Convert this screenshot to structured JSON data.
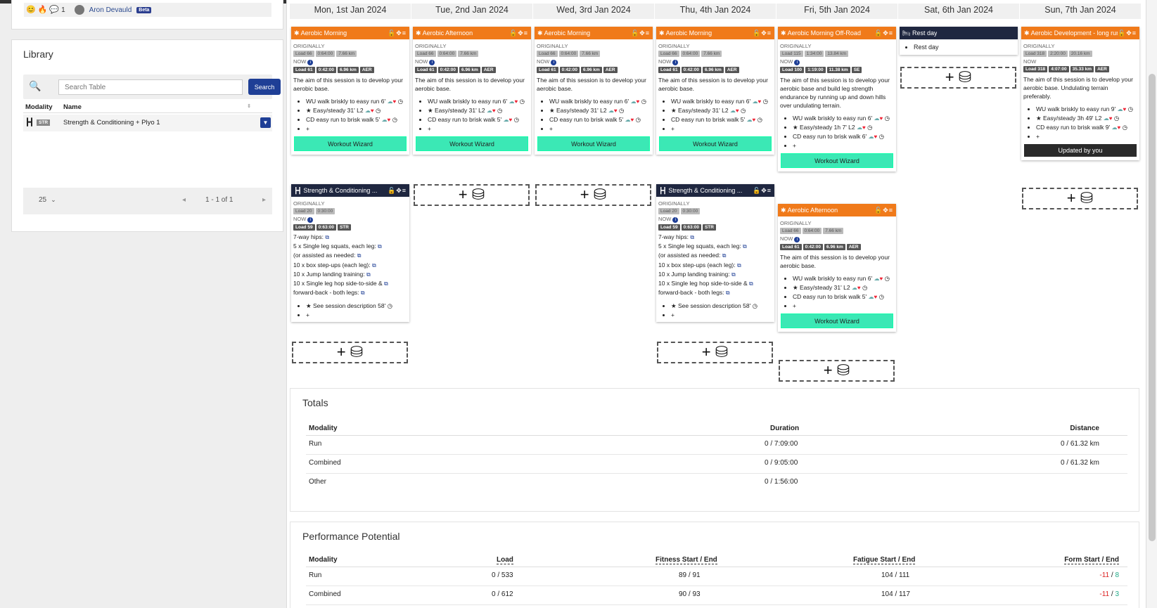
{
  "header": {
    "user_name": "Aron Devauld",
    "beta": "Beta",
    "count": "1"
  },
  "library": {
    "title": "Library",
    "search_placeholder": "Search Table",
    "search_button": "Search",
    "col_modality": "Modality",
    "col_name": "Name",
    "row": {
      "modality": "STR",
      "name": "Strength & Conditioning + Plyo 1"
    },
    "per_page": "25",
    "pagination": "1 - 1 of 1"
  },
  "days": [
    "Mon, 1st Jan 2024",
    "Tue, 2nd Jan 2024",
    "Wed, 3rd Jan 2024",
    "Thu, 4th Jan 2024",
    "Fri, 5th Jan 2024",
    "Sat, 6th Jan 2024",
    "Sun, 7th Jan 2024"
  ],
  "labels": {
    "originally": "ORIGINALLY",
    "now": "NOW",
    "workout_wizard": "Workout Wizard",
    "updated_by_you": "Updated by you"
  },
  "aerobic": {
    "title_morning": "Aerobic Morning",
    "title_afternoon": "Aerobic Afternoon",
    "orig": [
      "Load 66",
      "0:64:00",
      "7.66 km"
    ],
    "now": [
      "Load 61",
      "0:42:00",
      "6.96 km",
      "AER"
    ],
    "desc": "The aim of this session is to develop your aerobic base.",
    "steps": [
      "WU walk briskly to easy run 6'",
      "Easy/steady 31' L2",
      "CD easy run to brisk walk 5'"
    ]
  },
  "offroad": {
    "title": "Aerobic Morning Off-Road",
    "orig": [
      "Load 115",
      "1:34:00",
      "13.84 km"
    ],
    "now": [
      "Load 100",
      "1:19:00",
      "11.38 km",
      "SE"
    ],
    "desc": "The aim of this session is to develop your aerobic base and build leg strength endurance by running up and down hills over undulating terrain.",
    "steps": [
      "WU walk briskly to easy run 6'",
      "Easy/steady 1h 7' L2",
      "CD easy run to brisk walk 6'"
    ]
  },
  "longrun": {
    "title": "Aerobic Development - long run",
    "orig": [
      "Load 318",
      "2:20:00",
      "20.16 km"
    ],
    "now": [
      "Load 318",
      "4:07:00",
      "35.33 km",
      "AER"
    ],
    "desc": "The aim of this session is to develop your aerobic base. Undulating terrain preferably.",
    "steps": [
      "WU walk briskly to easy run 9'",
      "Easy/steady 3h 49' L2",
      "CD easy run to brisk walk 9'"
    ]
  },
  "strength": {
    "title": "Strength & Conditioning ...",
    "orig": [
      "Load 20",
      "0:30:00"
    ],
    "now": [
      "Load 59",
      "0:63:00",
      "STR"
    ],
    "lines": [
      "7-way hips:",
      "5 x Single leg squats, each leg:",
      "(or assisted as needed:",
      "10 x box step-ups (each leg):",
      "10 x Jump landing training:",
      "10 x Single leg hop side-to-side &",
      "forward-back - both legs:"
    ],
    "step": "See session description 58'"
  },
  "rest": {
    "title": "Rest day",
    "item": "Rest day"
  },
  "totals": {
    "title": "Totals",
    "headers": [
      "Modality",
      "Duration",
      "Distance"
    ],
    "rows": [
      [
        "Run",
        "0 / 7:09:00",
        "0 / 61.32 km"
      ],
      [
        "Combined",
        "0 / 9:05:00",
        "0 / 61.32 km"
      ],
      [
        "Other",
        "0 / 1:56:00",
        ""
      ]
    ]
  },
  "performance": {
    "title": "Performance Potential",
    "headers": [
      "Modality",
      "Load",
      "Fitness Start / End",
      "Fatigue Start / End",
      "Form Start / End"
    ],
    "rows": [
      {
        "m": "Run",
        "load": "0 / 533",
        "fit": "89 / 91",
        "fat": "104 / 111",
        "f1": "-11",
        "f2": "8"
      },
      {
        "m": "Combined",
        "load": "0 / 612",
        "fit": "90 / 93",
        "fat": "104 / 117",
        "f1": "-11",
        "f2": "3"
      }
    ]
  },
  "colors": {
    "orange": "#f07a1a",
    "navy": "#1f2740",
    "wizard": "#3be8b5",
    "primary": "#1f3f96"
  }
}
